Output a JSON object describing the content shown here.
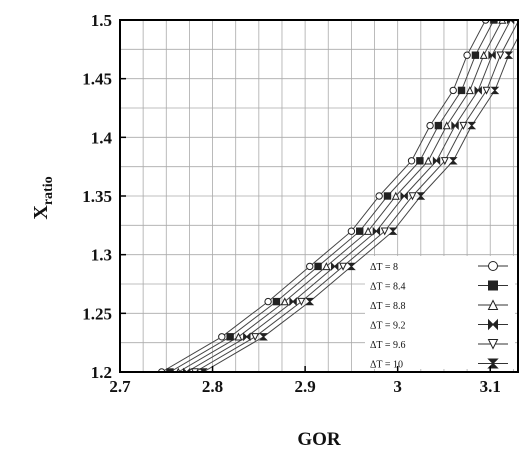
{
  "chart_data": {
    "type": "line",
    "xlabel": "GOR",
    "ylabel": {
      "main": "X",
      "sub": "ratio"
    },
    "xlim": [
      2.7,
      3.13
    ],
    "ylim": [
      1.2,
      1.5
    ],
    "x_ticks": [
      "2.7",
      "2.8",
      "2.9",
      "3",
      "3.1"
    ],
    "x_tick_values": [
      2.7,
      2.8,
      2.9,
      3.0,
      3.1
    ],
    "y_ticks": [
      "1.2",
      "1.25",
      "1.3",
      "1.35",
      "1.4",
      "1.45",
      "1.5"
    ],
    "y_tick_values": [
      1.2,
      1.25,
      1.3,
      1.35,
      1.4,
      1.45,
      1.5
    ],
    "grid": true,
    "legend_position": "lower-right",
    "y_values": [
      1.2,
      1.23,
      1.26,
      1.29,
      1.32,
      1.35,
      1.38,
      1.41,
      1.44,
      1.47,
      1.5
    ],
    "series": [
      {
        "name": "ΔT = 8",
        "marker": "circle-open",
        "x": [
          2.745,
          2.81,
          2.86,
          2.905,
          2.95,
          2.98,
          3.015,
          3.035,
          3.06,
          3.075,
          3.095
        ]
      },
      {
        "name": "ΔT = 8.4",
        "marker": "square-filled",
        "x": [
          2.754,
          2.819,
          2.869,
          2.914,
          2.959,
          2.989,
          3.024,
          3.044,
          3.069,
          3.084,
          3.104
        ]
      },
      {
        "name": "ΔT = 8.8",
        "marker": "triangle-open",
        "x": [
          2.763,
          2.828,
          2.878,
          2.923,
          2.968,
          2.998,
          3.033,
          3.053,
          3.078,
          3.093,
          3.113
        ]
      },
      {
        "name": "ΔT = 9.2",
        "marker": "bowtie",
        "x": [
          2.772,
          2.837,
          2.887,
          2.932,
          2.977,
          3.007,
          3.042,
          3.062,
          3.087,
          3.102,
          3.122
        ]
      },
      {
        "name": "ΔT = 9.6",
        "marker": "triangle-down-open",
        "x": [
          2.781,
          2.846,
          2.896,
          2.941,
          2.986,
          3.016,
          3.051,
          3.071,
          3.096,
          3.111,
          3.131
        ]
      },
      {
        "name": "ΔT = 10",
        "marker": "hourglass-filled",
        "x": [
          2.79,
          2.855,
          2.905,
          2.95,
          2.995,
          3.025,
          3.06,
          3.08,
          3.105,
          3.12,
          3.14
        ]
      }
    ]
  }
}
